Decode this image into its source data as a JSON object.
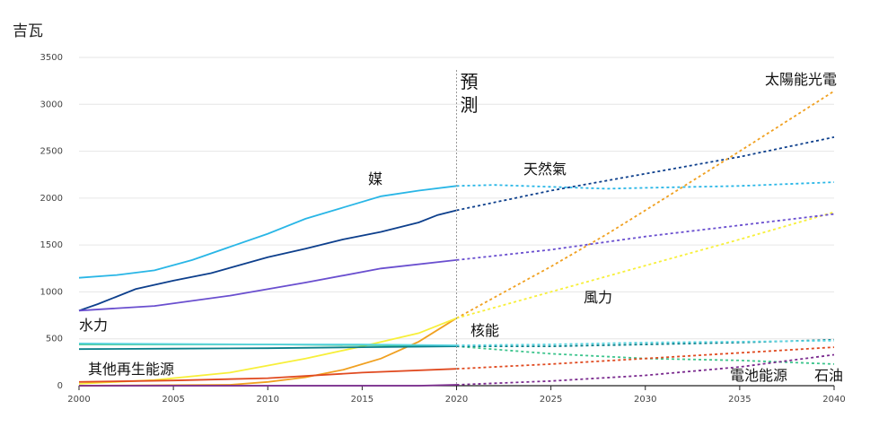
{
  "chart_data": {
    "type": "line",
    "unit_label": "吉瓦",
    "forecast_label": "預測",
    "split_year": 2020,
    "xlim": [
      2000,
      2040
    ],
    "ylim": [
      0,
      3500
    ],
    "x_ticks": [
      2000,
      2005,
      2010,
      2015,
      2020,
      2025,
      2030,
      2035,
      2040
    ],
    "y_ticks": [
      0,
      500,
      1000,
      1500,
      2000,
      2500,
      3000,
      3500
    ],
    "grid": true,
    "series": [
      {
        "name": "媒",
        "color": "#29b6e6",
        "points": [
          [
            2000,
            1150
          ],
          [
            2002,
            1180
          ],
          [
            2004,
            1230
          ],
          [
            2006,
            1340
          ],
          [
            2008,
            1480
          ],
          [
            2010,
            1620
          ],
          [
            2012,
            1780
          ],
          [
            2014,
            1900
          ],
          [
            2016,
            2020
          ],
          [
            2018,
            2080
          ],
          [
            2020,
            2130
          ],
          [
            2022,
            2140
          ],
          [
            2025,
            2120
          ],
          [
            2028,
            2100
          ],
          [
            2030,
            2110
          ],
          [
            2035,
            2130
          ],
          [
            2040,
            2170
          ]
        ]
      },
      {
        "name": "天然氣",
        "color": "#0d3f8c",
        "points": [
          [
            2000,
            800
          ],
          [
            2001,
            870
          ],
          [
            2003,
            1030
          ],
          [
            2005,
            1120
          ],
          [
            2007,
            1200
          ],
          [
            2010,
            1370
          ],
          [
            2012,
            1460
          ],
          [
            2014,
            1560
          ],
          [
            2016,
            1640
          ],
          [
            2018,
            1740
          ],
          [
            2019,
            1820
          ],
          [
            2020,
            1870
          ],
          [
            2025,
            2080
          ],
          [
            2030,
            2260
          ],
          [
            2035,
            2440
          ],
          [
            2040,
            2650
          ]
        ]
      },
      {
        "name": "太陽能光電",
        "color": "#f0a020",
        "points": [
          [
            2000,
            0
          ],
          [
            2008,
            10
          ],
          [
            2010,
            40
          ],
          [
            2012,
            90
          ],
          [
            2014,
            170
          ],
          [
            2016,
            290
          ],
          [
            2018,
            470
          ],
          [
            2020,
            720
          ],
          [
            2022,
            940
          ],
          [
            2025,
            1270
          ],
          [
            2028,
            1620
          ],
          [
            2030,
            1870
          ],
          [
            2035,
            2500
          ],
          [
            2040,
            3140
          ]
        ]
      },
      {
        "name": "風力",
        "color": "#f7ef3a",
        "points": [
          [
            2000,
            20
          ],
          [
            2004,
            60
          ],
          [
            2008,
            140
          ],
          [
            2012,
            290
          ],
          [
            2015,
            420
          ],
          [
            2018,
            560
          ],
          [
            2020,
            720
          ],
          [
            2025,
            1000
          ],
          [
            2030,
            1280
          ],
          [
            2035,
            1560
          ],
          [
            2040,
            1850
          ]
        ]
      },
      {
        "name": "",
        "color": "#6a4fcf",
        "points": [
          [
            2000,
            800
          ],
          [
            2004,
            850
          ],
          [
            2008,
            960
          ],
          [
            2012,
            1100
          ],
          [
            2016,
            1250
          ],
          [
            2020,
            1340
          ],
          [
            2025,
            1450
          ],
          [
            2030,
            1590
          ],
          [
            2035,
            1710
          ],
          [
            2040,
            1830
          ]
        ]
      },
      {
        "name": "水力",
        "color": "#3cc48c",
        "points": [
          [
            2000,
            440
          ],
          [
            2010,
            440
          ],
          [
            2016,
            430
          ],
          [
            2020,
            420
          ],
          [
            2025,
            340
          ],
          [
            2030,
            290
          ],
          [
            2035,
            270
          ],
          [
            2040,
            230
          ]
        ]
      },
      {
        "name": "核能",
        "color": "#0a7f8a",
        "points": [
          [
            2000,
            390
          ],
          [
            2005,
            395
          ],
          [
            2010,
            400
          ],
          [
            2015,
            410
          ],
          [
            2020,
            420
          ],
          [
            2025,
            420
          ],
          [
            2030,
            440
          ],
          [
            2035,
            460
          ],
          [
            2040,
            490
          ]
        ]
      },
      {
        "name": "其他再生能源",
        "color": "#e04a20",
        "points": [
          [
            2000,
            40
          ],
          [
            2005,
            55
          ],
          [
            2010,
            80
          ],
          [
            2015,
            140
          ],
          [
            2020,
            180
          ],
          [
            2025,
            230
          ],
          [
            2030,
            290
          ],
          [
            2035,
            350
          ],
          [
            2040,
            410
          ]
        ]
      },
      {
        "name": "電池能源",
        "color": "#7a2a8e",
        "points": [
          [
            2000,
            0
          ],
          [
            2018,
            0
          ],
          [
            2020,
            10
          ],
          [
            2025,
            50
          ],
          [
            2030,
            110
          ],
          [
            2035,
            200
          ],
          [
            2040,
            330
          ]
        ]
      },
      {
        "name": "石油",
        "color": "#5ad4e0",
        "points": [
          [
            2000,
            450
          ],
          [
            2010,
            440
          ],
          [
            2015,
            440
          ],
          [
            2020,
            430
          ],
          [
            2025,
            440
          ],
          [
            2030,
            460
          ],
          [
            2035,
            470
          ],
          [
            2040,
            480
          ]
        ]
      }
    ]
  }
}
